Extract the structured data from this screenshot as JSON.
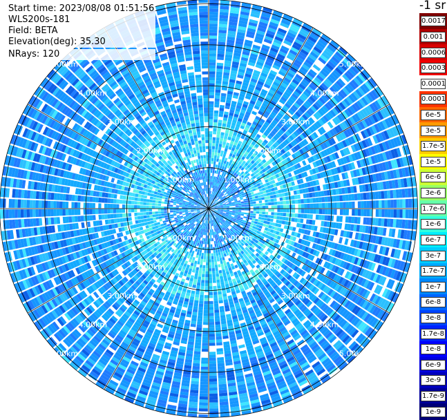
{
  "header": {
    "start_time": "Start time: 2023/08/08 01:51:56",
    "instrument": "WLS200s-181",
    "field": "Field: BETA",
    "elevation": "Elevation(deg): 35.30",
    "nrays": "NRays: 120"
  },
  "colorbar": {
    "title": "-1 sr",
    "labels": [
      "0.0017",
      "0.001",
      "0.0006",
      "0.0003",
      "0.00017",
      "0.0001",
      "6e-5",
      "3e-5",
      "1.7e-5",
      "1e-5",
      "6e-6",
      "3e-6",
      "1.7e-6",
      "1e-6",
      "6e-7",
      "3e-7",
      "1.7e-7",
      "1e-7",
      "6e-8",
      "3e-8",
      "1.7e-8",
      "1e-8",
      "6e-9",
      "3e-9",
      "1.7e-9",
      "1e-9"
    ],
    "colors": [
      "#800000",
      "#b00000",
      "#d80000",
      "#f00000",
      "#ffffff",
      "#ff3300",
      "#ff6600",
      "#ff9900",
      "#ffcc00",
      "#ffff00",
      "#ccff33",
      "#99ff66",
      "#66ffaa",
      "#33ffdd",
      "#00eeff",
      "#00ccff",
      "#00aaff",
      "#0088ff",
      "#0066ff",
      "#0044ff",
      "#0022ff",
      "#0000ff",
      "#0000dd",
      "#0000bb",
      "#000099",
      "#000077"
    ]
  },
  "chart_data": {
    "type": "heatmap",
    "projection": "polar PPI",
    "field": "BETA",
    "units": "sr-1",
    "nrays": 120,
    "range_rings_km": [
      1,
      2,
      3,
      4,
      5
    ],
    "ring_labels": [
      "1.00km",
      "2.00km",
      "3.00km",
      "4.00km",
      "5.00km"
    ],
    "max_range_km": 5.1,
    "spoke_angles_deg": [
      0,
      30,
      60,
      90,
      120,
      150,
      180,
      210,
      240,
      270,
      300,
      330
    ],
    "label_bearings_deg": [
      45,
      135,
      225,
      315
    ],
    "typical_value_range": [
      3e-08,
      3e-07
    ]
  }
}
